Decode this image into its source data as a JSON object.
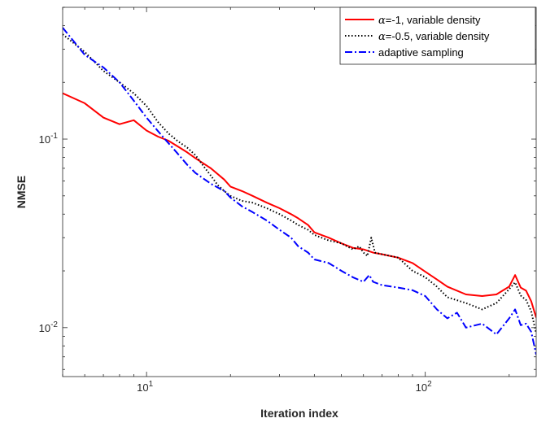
{
  "chart_data": {
    "type": "line",
    "title": "",
    "xlabel": "Iteration index",
    "ylabel": "NMSE",
    "xscale": "log",
    "yscale": "log",
    "xlim": [
      5,
      250
    ],
    "ylim": [
      0.0055,
      0.5
    ],
    "grid": false,
    "legend_position": "top-right",
    "x_ticks": [
      {
        "value": 10,
        "base": "10",
        "exp": "1"
      },
      {
        "value": 100,
        "base": "10",
        "exp": "2"
      }
    ],
    "y_ticks": [
      {
        "value": 0.01,
        "base": "10",
        "exp": "-2"
      },
      {
        "value": 0.1,
        "base": "10",
        "exp": "-1"
      }
    ],
    "series": [
      {
        "name": "α=-1, variable density",
        "greek": "α",
        "rest": "=-1, variable density",
        "color": "#ff0000",
        "dash": "solid",
        "x": [
          5,
          6,
          7,
          8,
          9,
          10,
          11,
          12,
          13,
          14,
          15,
          17,
          19,
          20,
          22,
          24,
          27,
          30,
          33,
          35,
          38,
          40,
          45,
          50,
          55,
          60,
          65,
          70,
          80,
          90,
          100,
          110,
          120,
          140,
          160,
          180,
          200,
          210,
          220,
          230,
          240,
          250
        ],
        "y": [
          0.175,
          0.155,
          0.13,
          0.12,
          0.126,
          0.111,
          0.103,
          0.098,
          0.091,
          0.085,
          0.079,
          0.07,
          0.061,
          0.056,
          0.053,
          0.05,
          0.046,
          0.043,
          0.04,
          0.038,
          0.035,
          0.032,
          0.03,
          0.028,
          0.0265,
          0.026,
          0.025,
          0.0245,
          0.0235,
          0.022,
          0.0198,
          0.018,
          0.0165,
          0.015,
          0.0147,
          0.015,
          0.0165,
          0.019,
          0.0163,
          0.0157,
          0.0138,
          0.0113
        ]
      },
      {
        "name": "α=-0.5, variable density",
        "greek": "α",
        "rest": "=-0.5, variable density",
        "color": "#000000",
        "dash": "dotted",
        "x": [
          5,
          6,
          7,
          8,
          9,
          10,
          11,
          12,
          13,
          14,
          15,
          16,
          17,
          18,
          19,
          20,
          22,
          24,
          27,
          30,
          33,
          35,
          38,
          40,
          45,
          50,
          55,
          58,
          60,
          62,
          64,
          66,
          70,
          80,
          90,
          100,
          110,
          120,
          140,
          160,
          180,
          200,
          210,
          220,
          230,
          240,
          250
        ],
        "y": [
          0.36,
          0.29,
          0.23,
          0.2,
          0.175,
          0.15,
          0.123,
          0.107,
          0.097,
          0.09,
          0.082,
          0.072,
          0.064,
          0.057,
          0.053,
          0.05,
          0.047,
          0.046,
          0.043,
          0.04,
          0.037,
          0.035,
          0.033,
          0.031,
          0.029,
          0.028,
          0.026,
          0.027,
          0.025,
          0.024,
          0.03,
          0.025,
          0.0245,
          0.0235,
          0.02,
          0.0185,
          0.0165,
          0.0145,
          0.0135,
          0.0125,
          0.0135,
          0.016,
          0.0174,
          0.0148,
          0.014,
          0.0122,
          0.0093
        ]
      },
      {
        "name": "adaptive sampling",
        "greek": "",
        "rest": "adaptive sampling",
        "color": "#0000ff",
        "dash": "dashdot",
        "x": [
          5,
          6,
          7,
          8,
          9,
          10,
          11,
          12,
          13,
          14,
          15,
          17,
          19,
          20,
          22,
          24,
          27,
          30,
          33,
          35,
          38,
          40,
          45,
          50,
          55,
          60,
          63,
          65,
          70,
          80,
          90,
          100,
          110,
          120,
          130,
          140,
          160,
          180,
          200,
          210,
          220,
          230,
          240,
          250
        ],
        "y": [
          0.39,
          0.28,
          0.24,
          0.2,
          0.16,
          0.13,
          0.11,
          0.095,
          0.083,
          0.073,
          0.066,
          0.058,
          0.053,
          0.049,
          0.044,
          0.041,
          0.037,
          0.033,
          0.03,
          0.027,
          0.025,
          0.023,
          0.022,
          0.02,
          0.0185,
          0.0175,
          0.019,
          0.0175,
          0.0168,
          0.0163,
          0.0158,
          0.0147,
          0.0125,
          0.0112,
          0.012,
          0.01,
          0.0105,
          0.0092,
          0.0112,
          0.0125,
          0.0103,
          0.0105,
          0.0095,
          0.0072
        ]
      }
    ]
  }
}
